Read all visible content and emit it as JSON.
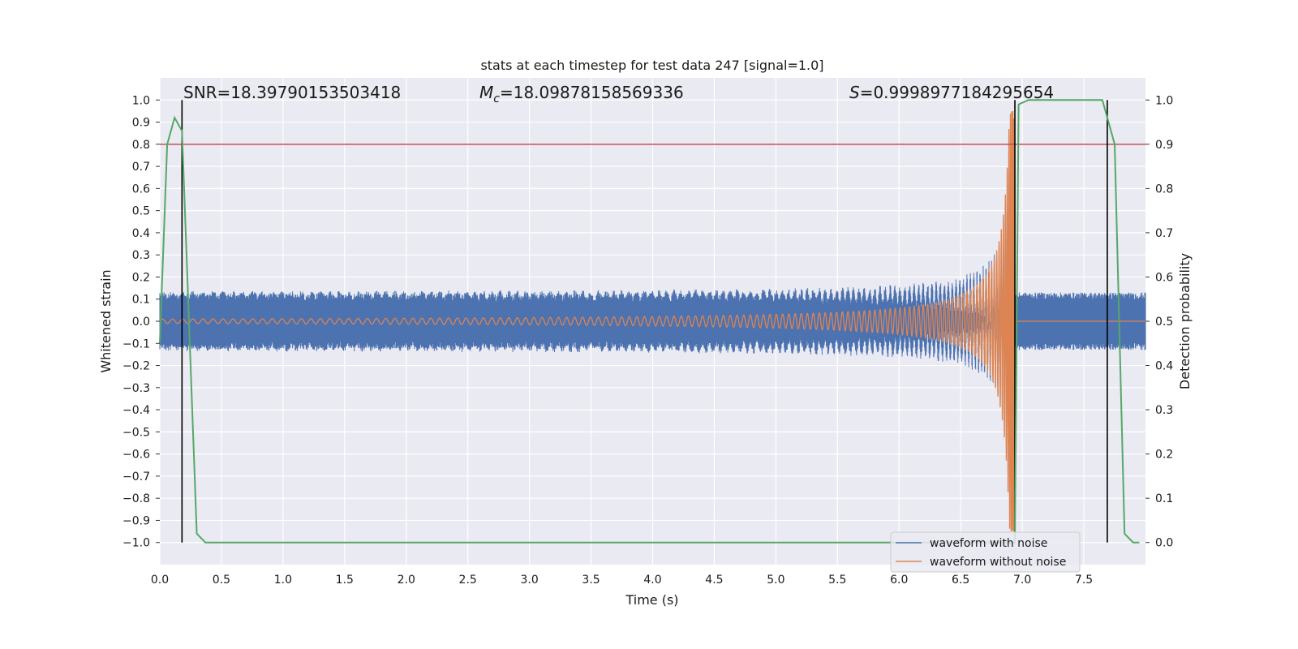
{
  "chart_data": {
    "type": "line",
    "title": "stats at each timestep for test data 247 [signal=1.0]",
    "xlabel": "Time (s)",
    "ylabel": "Whitened strain",
    "y2label": "Detection probability",
    "xlim": [
      0.0,
      8.0
    ],
    "ylim": [
      -1.1,
      1.1
    ],
    "y2lim": [
      -0.05,
      1.05
    ],
    "x_ticks": [
      0.0,
      0.5,
      1.0,
      1.5,
      2.0,
      2.5,
      3.0,
      3.5,
      4.0,
      4.5,
      5.0,
      5.5,
      6.0,
      6.5,
      7.0,
      7.5
    ],
    "y_ticks": [
      1.0,
      0.9,
      0.8,
      0.7,
      0.6,
      0.5,
      0.4,
      0.3,
      0.2,
      0.1,
      0.0,
      -0.1,
      -0.2,
      -0.3,
      -0.4,
      -0.5,
      -0.6,
      -0.7,
      -0.8,
      -0.9,
      -1.0
    ],
    "y2_ticks": [
      1.0,
      0.9,
      0.8,
      0.7,
      0.6,
      0.5,
      0.4,
      0.3,
      0.2,
      0.1,
      0.0
    ],
    "grid": true,
    "background": "#eaeaf2",
    "legend_position": "lower right",
    "annotations": {
      "snr": "SNR=18.39790153503418",
      "mc_symbol": "M",
      "mc_sub": "c",
      "mc_value": "=18.09878158569336",
      "s_symbol": "S",
      "s_value": "=0.9998977184295654"
    },
    "series": [
      {
        "name": "waveform with noise",
        "color": "#4c72b0",
        "noise_amplitude": 0.13,
        "peak_amplitude": 0.6,
        "peak_time": 6.94
      },
      {
        "name": "waveform without noise",
        "color": "#dd8452",
        "start_amplitude": 0.01,
        "peak_amplitude": 0.95,
        "peak_time": 6.94,
        "start_frequency_hz": 12
      }
    ],
    "detection_probability": {
      "color": "#55a868",
      "points": [
        [
          0.0,
          0.45
        ],
        [
          0.06,
          0.9
        ],
        [
          0.12,
          0.96
        ],
        [
          0.18,
          0.93
        ],
        [
          0.3,
          0.02
        ],
        [
          0.37,
          0.0
        ],
        [
          6.94,
          0.0
        ],
        [
          6.97,
          0.99
        ],
        [
          7.05,
          1.0
        ],
        [
          7.65,
          1.0
        ],
        [
          7.75,
          0.9
        ],
        [
          7.83,
          0.02
        ],
        [
          7.9,
          0.0
        ],
        [
          7.95,
          0.0
        ]
      ]
    },
    "threshold": {
      "value": 0.9,
      "color": "#c44e52"
    },
    "detection_markers": {
      "times": [
        0.18,
        6.94,
        7.69
      ],
      "color": "#000000"
    }
  }
}
